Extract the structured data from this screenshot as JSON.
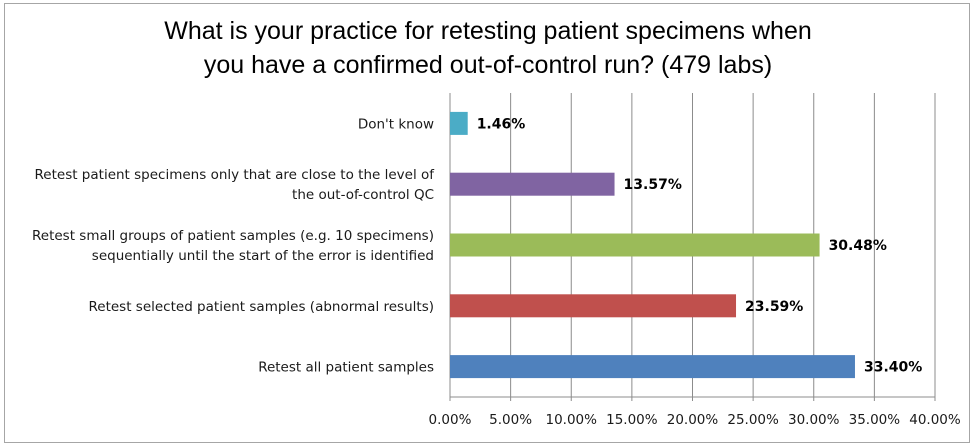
{
  "chart_data": {
    "type": "bar",
    "orientation": "horizontal",
    "title_lines": [
      "What is your practice for retesting patient specimens when",
      "you have a confirmed out-of-control run? (479 labs)"
    ],
    "categories": [
      {
        "lines": [
          "Retest all patient samples"
        ],
        "value": 33.4,
        "label": "33.40%",
        "color": "#4f81bd"
      },
      {
        "lines": [
          "Retest selected patient samples (abnormal results)"
        ],
        "value": 23.59,
        "label": "23.59%",
        "color": "#c0504d"
      },
      {
        "lines": [
          "Retest small groups of patient samples (e.g. 10 specimens)",
          "sequentially until the start of the error is identified"
        ],
        "value": 30.48,
        "label": "30.48%",
        "color": "#9bbb59"
      },
      {
        "lines": [
          "Retest patient specimens only that are close to the level of",
          "the out-of-control QC"
        ],
        "value": 13.57,
        "label": "13.57%",
        "color": "#8064a2"
      },
      {
        "lines": [
          "Don't know"
        ],
        "value": 1.46,
        "label": "1.46%",
        "color": "#4bacc6"
      }
    ],
    "x_ticks": [
      "0.00%",
      "5.00%",
      "10.00%",
      "15.00%",
      "20.00%",
      "25.00%",
      "30.00%",
      "35.00%",
      "40.00%"
    ],
    "xlim": [
      0,
      40
    ],
    "x_tick_step": 5,
    "grid": true,
    "legend": "none"
  }
}
